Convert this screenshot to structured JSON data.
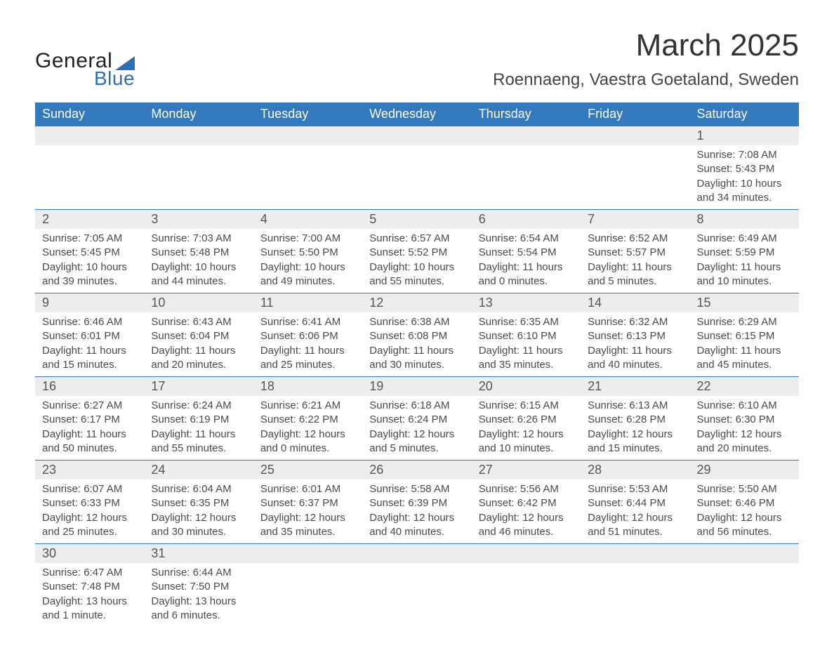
{
  "brand": {
    "part1": "General",
    "part2": "Blue",
    "accent_color": "#2c6fb3"
  },
  "title": "March 2025",
  "location": "Roennaeng, Vaestra Goetaland, Sweden",
  "colors": {
    "header_bg": "#3279bd",
    "header_text": "#ffffff",
    "daynum_bg": "#ededed",
    "body_text": "#4a4a4a",
    "row_divider": "#3279bd",
    "page_bg": "#ffffff"
  },
  "typography": {
    "title_fontsize": 44,
    "location_fontsize": 24,
    "header_fontsize": 18,
    "daynum_fontsize": 18,
    "body_fontsize": 15
  },
  "weekdays": [
    "Sunday",
    "Monday",
    "Tuesday",
    "Wednesday",
    "Thursday",
    "Friday",
    "Saturday"
  ],
  "layout": {
    "first_day_col": 6,
    "rows": 6,
    "cols": 7
  },
  "labels": {
    "sunrise": "Sunrise:",
    "sunset": "Sunset:",
    "daylight": "Daylight:"
  },
  "days": [
    {
      "n": 1,
      "sunrise": "7:08 AM",
      "sunset": "5:43 PM",
      "daylight": "10 hours and 34 minutes."
    },
    {
      "n": 2,
      "sunrise": "7:05 AM",
      "sunset": "5:45 PM",
      "daylight": "10 hours and 39 minutes."
    },
    {
      "n": 3,
      "sunrise": "7:03 AM",
      "sunset": "5:48 PM",
      "daylight": "10 hours and 44 minutes."
    },
    {
      "n": 4,
      "sunrise": "7:00 AM",
      "sunset": "5:50 PM",
      "daylight": "10 hours and 49 minutes."
    },
    {
      "n": 5,
      "sunrise": "6:57 AM",
      "sunset": "5:52 PM",
      "daylight": "10 hours and 55 minutes."
    },
    {
      "n": 6,
      "sunrise": "6:54 AM",
      "sunset": "5:54 PM",
      "daylight": "11 hours and 0 minutes."
    },
    {
      "n": 7,
      "sunrise": "6:52 AM",
      "sunset": "5:57 PM",
      "daylight": "11 hours and 5 minutes."
    },
    {
      "n": 8,
      "sunrise": "6:49 AM",
      "sunset": "5:59 PM",
      "daylight": "11 hours and 10 minutes."
    },
    {
      "n": 9,
      "sunrise": "6:46 AM",
      "sunset": "6:01 PM",
      "daylight": "11 hours and 15 minutes."
    },
    {
      "n": 10,
      "sunrise": "6:43 AM",
      "sunset": "6:04 PM",
      "daylight": "11 hours and 20 minutes."
    },
    {
      "n": 11,
      "sunrise": "6:41 AM",
      "sunset": "6:06 PM",
      "daylight": "11 hours and 25 minutes."
    },
    {
      "n": 12,
      "sunrise": "6:38 AM",
      "sunset": "6:08 PM",
      "daylight": "11 hours and 30 minutes."
    },
    {
      "n": 13,
      "sunrise": "6:35 AM",
      "sunset": "6:10 PM",
      "daylight": "11 hours and 35 minutes."
    },
    {
      "n": 14,
      "sunrise": "6:32 AM",
      "sunset": "6:13 PM",
      "daylight": "11 hours and 40 minutes."
    },
    {
      "n": 15,
      "sunrise": "6:29 AM",
      "sunset": "6:15 PM",
      "daylight": "11 hours and 45 minutes."
    },
    {
      "n": 16,
      "sunrise": "6:27 AM",
      "sunset": "6:17 PM",
      "daylight": "11 hours and 50 minutes."
    },
    {
      "n": 17,
      "sunrise": "6:24 AM",
      "sunset": "6:19 PM",
      "daylight": "11 hours and 55 minutes."
    },
    {
      "n": 18,
      "sunrise": "6:21 AM",
      "sunset": "6:22 PM",
      "daylight": "12 hours and 0 minutes."
    },
    {
      "n": 19,
      "sunrise": "6:18 AM",
      "sunset": "6:24 PM",
      "daylight": "12 hours and 5 minutes."
    },
    {
      "n": 20,
      "sunrise": "6:15 AM",
      "sunset": "6:26 PM",
      "daylight": "12 hours and 10 minutes."
    },
    {
      "n": 21,
      "sunrise": "6:13 AM",
      "sunset": "6:28 PM",
      "daylight": "12 hours and 15 minutes."
    },
    {
      "n": 22,
      "sunrise": "6:10 AM",
      "sunset": "6:30 PM",
      "daylight": "12 hours and 20 minutes."
    },
    {
      "n": 23,
      "sunrise": "6:07 AM",
      "sunset": "6:33 PM",
      "daylight": "12 hours and 25 minutes."
    },
    {
      "n": 24,
      "sunrise": "6:04 AM",
      "sunset": "6:35 PM",
      "daylight": "12 hours and 30 minutes."
    },
    {
      "n": 25,
      "sunrise": "6:01 AM",
      "sunset": "6:37 PM",
      "daylight": "12 hours and 35 minutes."
    },
    {
      "n": 26,
      "sunrise": "5:58 AM",
      "sunset": "6:39 PM",
      "daylight": "12 hours and 40 minutes."
    },
    {
      "n": 27,
      "sunrise": "5:56 AM",
      "sunset": "6:42 PM",
      "daylight": "12 hours and 46 minutes."
    },
    {
      "n": 28,
      "sunrise": "5:53 AM",
      "sunset": "6:44 PM",
      "daylight": "12 hours and 51 minutes."
    },
    {
      "n": 29,
      "sunrise": "5:50 AM",
      "sunset": "6:46 PM",
      "daylight": "12 hours and 56 minutes."
    },
    {
      "n": 30,
      "sunrise": "6:47 AM",
      "sunset": "7:48 PM",
      "daylight": "13 hours and 1 minute."
    },
    {
      "n": 31,
      "sunrise": "6:44 AM",
      "sunset": "7:50 PM",
      "daylight": "13 hours and 6 minutes."
    }
  ]
}
